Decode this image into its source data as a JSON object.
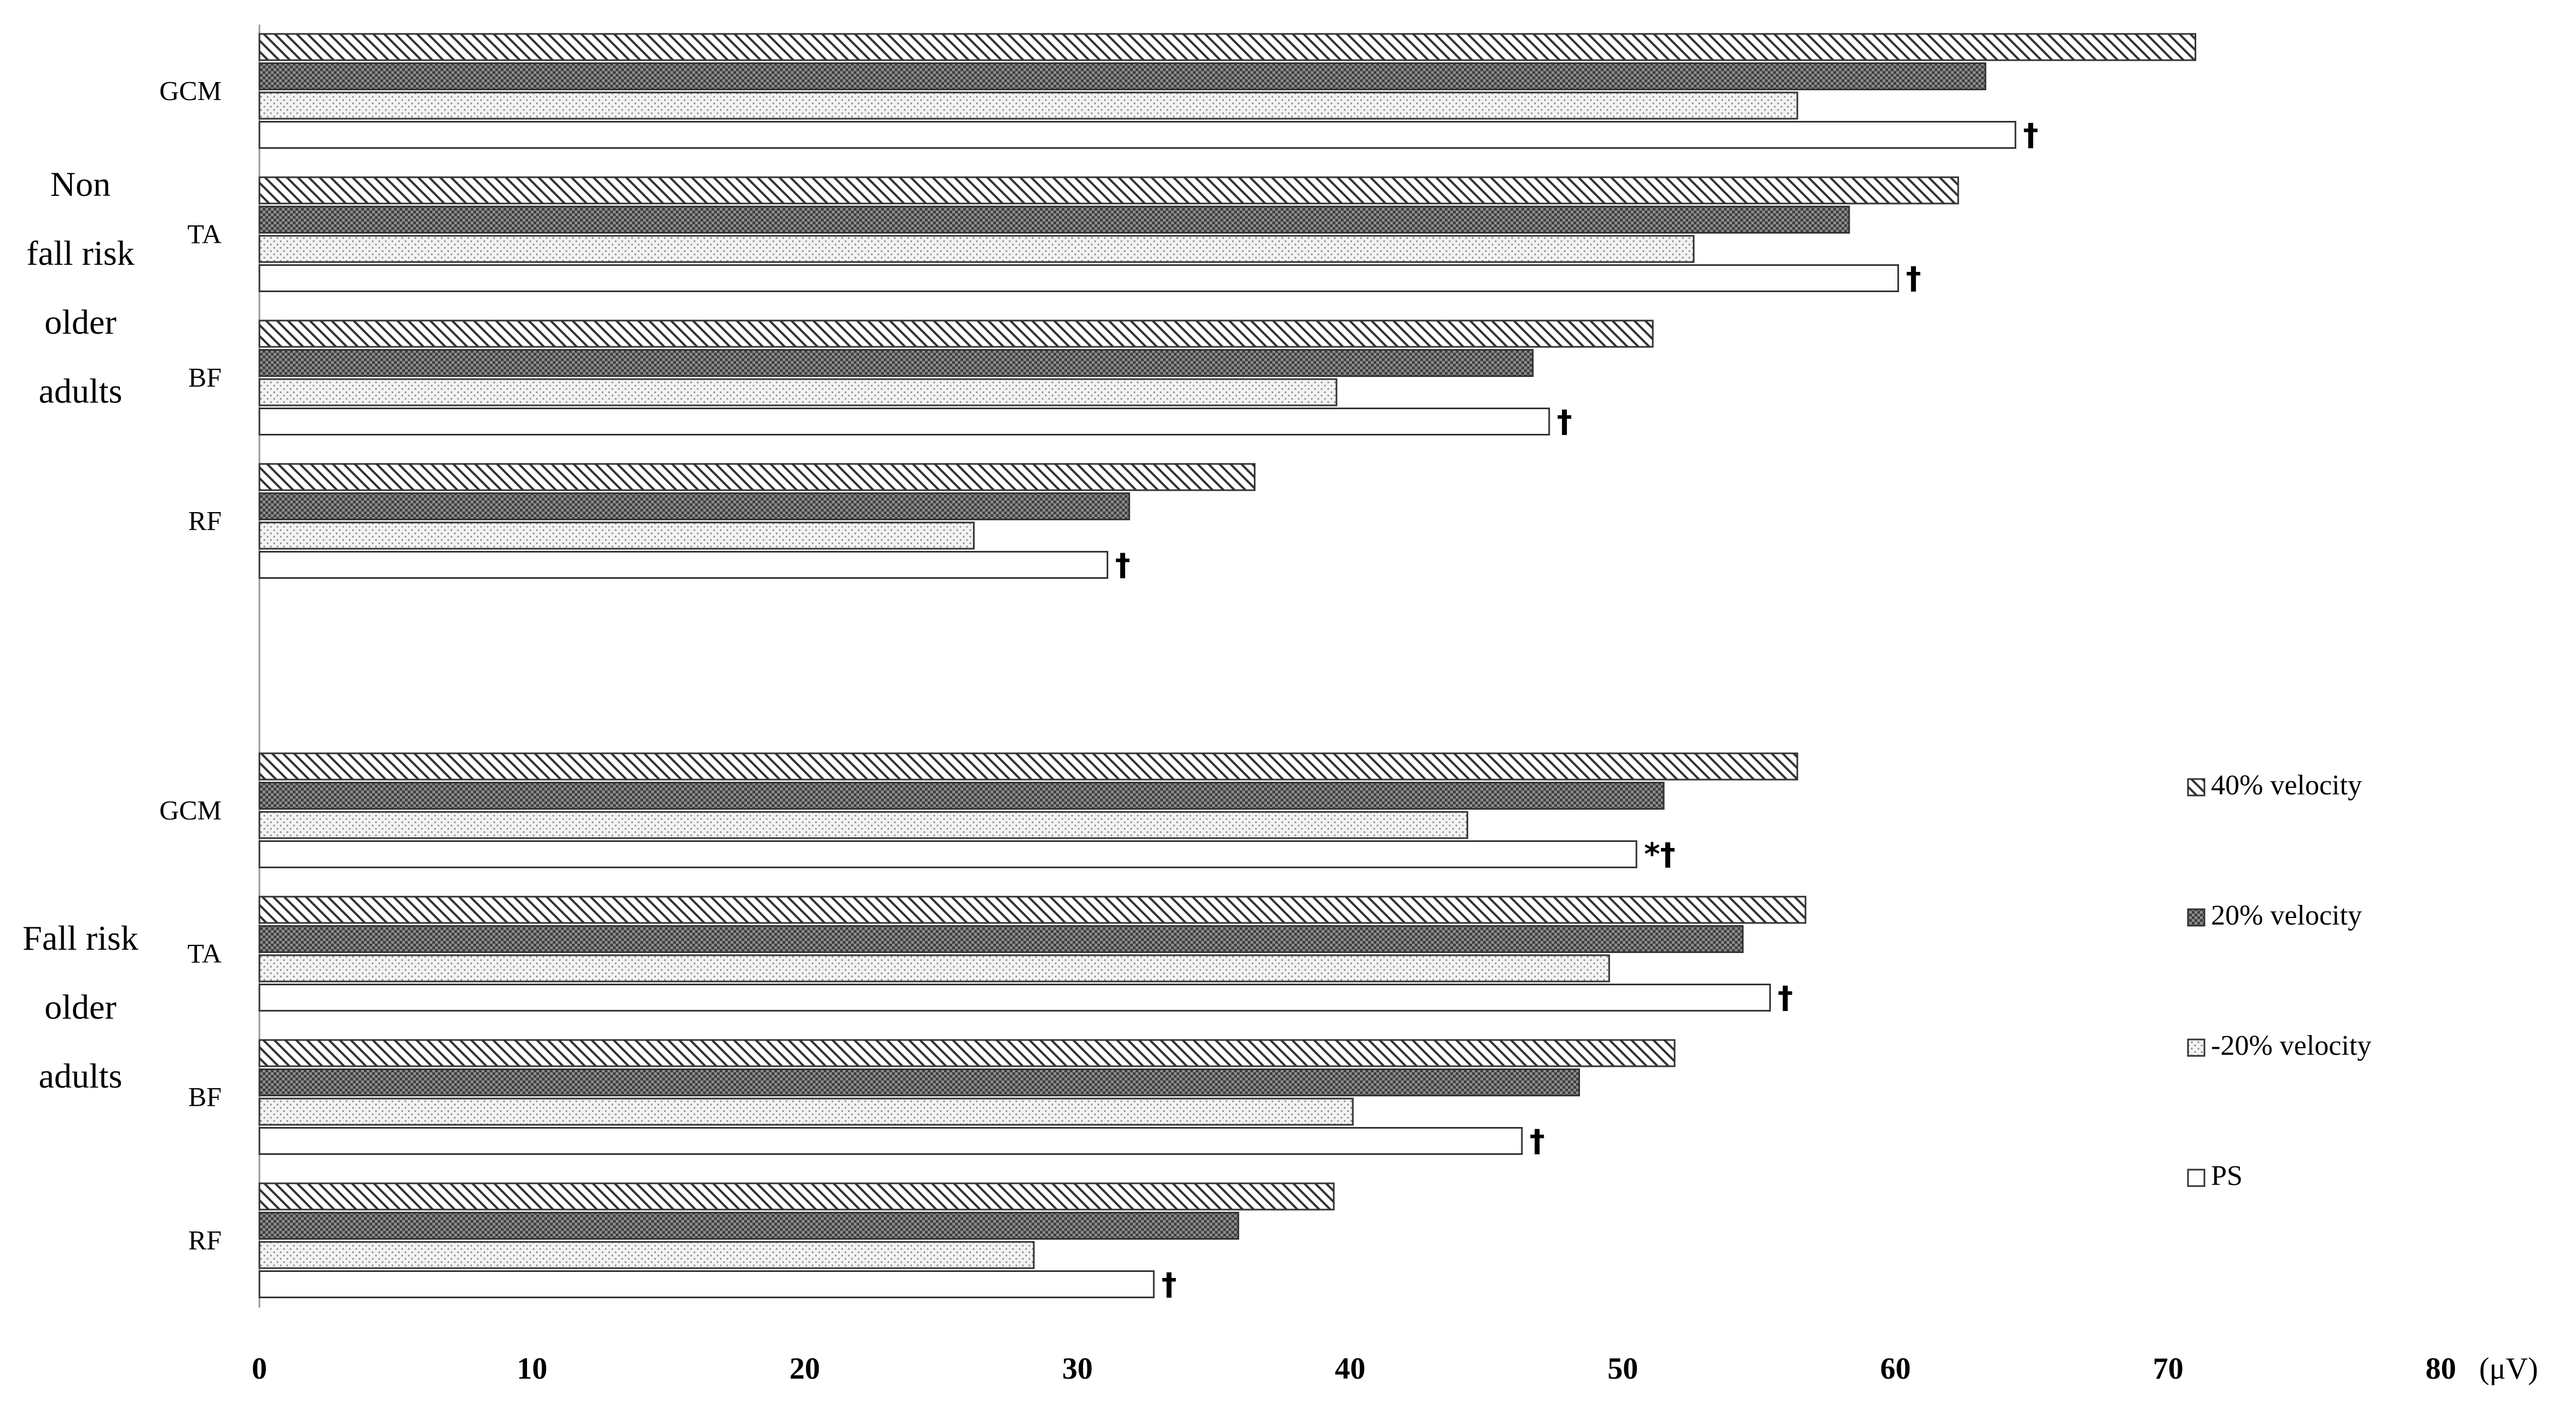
{
  "chart_data": {
    "type": "bar",
    "orientation": "horizontal",
    "x_unit_label": "(μV)",
    "xlim": [
      0,
      80
    ],
    "x_ticks": [
      "0",
      "10",
      "20",
      "30",
      "40",
      "50",
      "60",
      "70",
      "80"
    ],
    "grid": false,
    "legend_position": "right",
    "series_meta": [
      {
        "name": "40% velocity",
        "pattern": "diagonal-hatch"
      },
      {
        "name": "20% velocity",
        "pattern": "dark-crosshatch"
      },
      {
        "name": "-20% velocity",
        "pattern": "light-dots"
      },
      {
        "name": "PS",
        "pattern": "solid-white"
      }
    ],
    "groups": [
      {
        "label_lines": [
          "Non",
          "fall risk",
          "older",
          "adults"
        ],
        "categories": [
          {
            "name": "GCM",
            "values": [
              71.0,
              63.3,
              56.4,
              64.4
            ],
            "mark": "†"
          },
          {
            "name": "TA",
            "values": [
              62.3,
              58.3,
              52.6,
              60.1
            ],
            "mark": "†"
          },
          {
            "name": "BF",
            "values": [
              51.1,
              46.7,
              39.5,
              47.3
            ],
            "mark": "†"
          },
          {
            "name": "RF",
            "values": [
              36.5,
              31.9,
              26.2,
              31.1
            ],
            "mark": "†"
          }
        ]
      },
      {
        "label_lines": [
          "Fall risk",
          "older",
          "adults"
        ],
        "categories": [
          {
            "name": "GCM",
            "values": [
              56.4,
              51.5,
              44.3,
              50.5
            ],
            "mark": "*†"
          },
          {
            "name": "TA",
            "values": [
              56.7,
              54.4,
              49.5,
              55.4
            ],
            "mark": "†"
          },
          {
            "name": "BF",
            "values": [
              51.9,
              48.4,
              40.1,
              46.3
            ],
            "mark": "†"
          },
          {
            "name": "RF",
            "values": [
              39.4,
              35.9,
              28.4,
              32.8
            ],
            "mark": "†"
          }
        ]
      }
    ]
  }
}
